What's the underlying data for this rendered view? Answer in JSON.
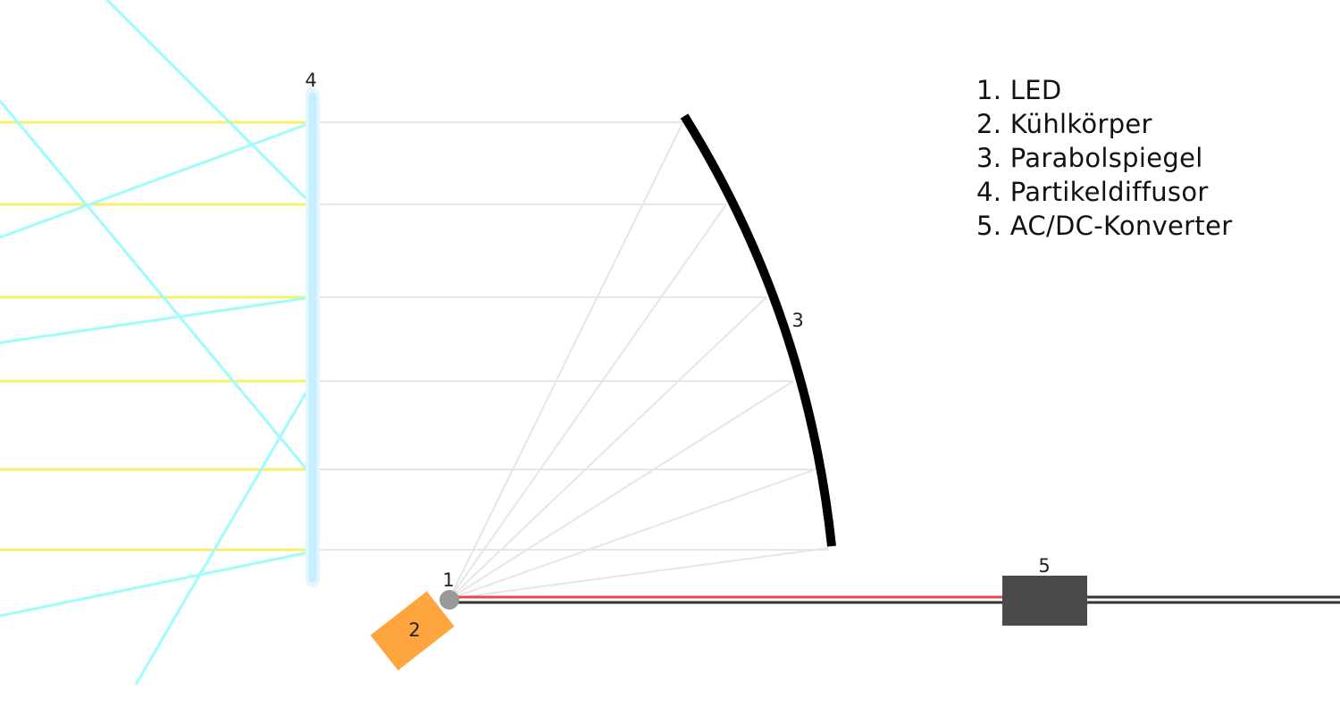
{
  "labels": {
    "led": "1",
    "heatsink": "2",
    "mirror": "3",
    "diffuser": "4",
    "converter": "5"
  },
  "legend": [
    "1. LED",
    "2. Kühlkörper",
    "3. Parabolspiegel",
    "4. Partikeldiffusor",
    "5. AC/DC-Konverter"
  ],
  "colors": {
    "mirror": "#000000",
    "led": "#999999",
    "heatsink": "#ffa53d",
    "converter": "#4a4a4a",
    "wire_positive": "#e8474f",
    "wire_negative": "#333333",
    "parallel_rays": "#f6f06b",
    "scattered_rays": "#9ffcfc",
    "guide_rays": "#e6e6e6",
    "diffuser": "#c6eefc"
  }
}
